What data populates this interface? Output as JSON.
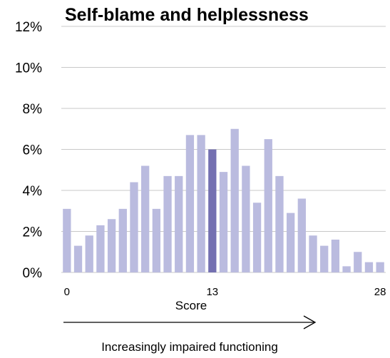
{
  "chart_data": {
    "type": "bar",
    "title": "Self-blame and helplessness",
    "xlabel": "Score",
    "annotation": "Increasingly impaired functioning",
    "x": [
      0,
      1,
      2,
      3,
      4,
      5,
      6,
      7,
      8,
      9,
      10,
      11,
      12,
      13,
      14,
      15,
      16,
      17,
      18,
      19,
      20,
      21,
      22,
      23,
      24,
      25,
      26,
      27,
      28
    ],
    "values": [
      3.1,
      1.3,
      1.8,
      2.3,
      2.6,
      3.1,
      4.4,
      5.2,
      3.1,
      4.7,
      4.7,
      6.7,
      6.7,
      6.0,
      4.9,
      7.0,
      5.2,
      3.4,
      6.5,
      4.7,
      2.9,
      3.6,
      1.8,
      1.3,
      1.6,
      0.3,
      1.0,
      0.5,
      0.5
    ],
    "highlight_x": 13,
    "x_tick_labels": [
      "0",
      "13",
      "28"
    ],
    "x_tick_values": [
      0,
      13,
      28
    ],
    "y_tick_labels": [
      "0%",
      "2%",
      "4%",
      "6%",
      "8%",
      "10%",
      "12%"
    ],
    "ylim": [
      0,
      12
    ],
    "grid": true,
    "colors": {
      "bar": "#babbdf",
      "highlight": "#7470b1",
      "grid": "#c8c8c8"
    }
  }
}
